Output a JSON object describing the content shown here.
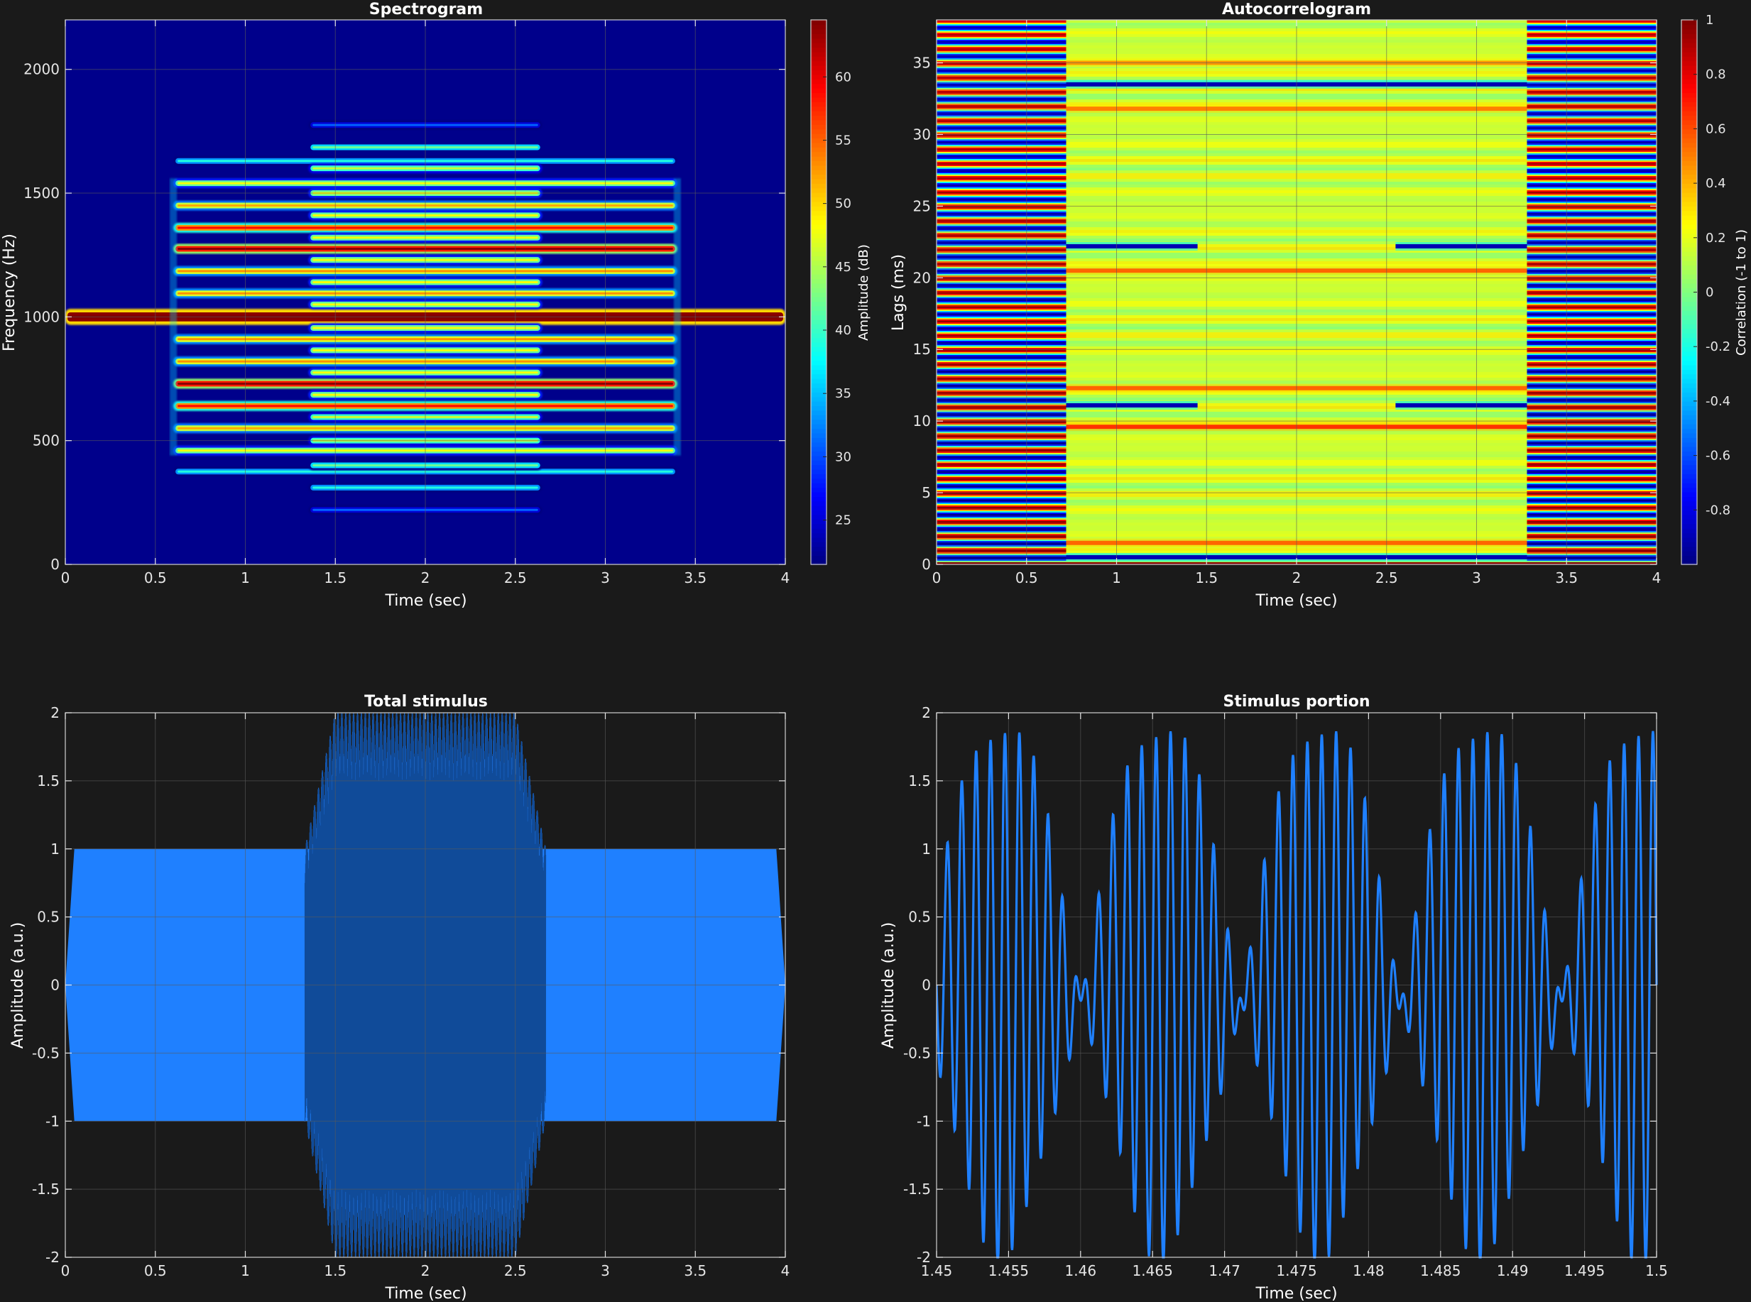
{
  "colors": {
    "background": "#1a1a1a",
    "axes_bg_dark": "#1a1a1a",
    "text": "#ffffff",
    "tick_text": "#e6e6e6",
    "grid": "#5a5a5a",
    "line": "#1f80ff",
    "colormap": "jet"
  },
  "chart_data": [
    {
      "id": "spectrogram",
      "type": "heatmap",
      "title": "Spectrogram",
      "xlabel": "Time (sec)",
      "ylabel": "Frequency (Hz)",
      "xlim": [
        0,
        4
      ],
      "ylim": [
        0,
        2200
      ],
      "xticks": [
        0,
        0.5,
        1,
        1.5,
        2,
        2.5,
        3,
        3.5,
        4
      ],
      "yticks": [
        0,
        500,
        1000,
        1500,
        2000
      ],
      "grid": true,
      "colorbar": {
        "label": "Amplitude (dB)",
        "ticks": [
          25,
          30,
          35,
          40,
          45,
          50,
          55,
          60
        ],
        "range": [
          21.5,
          64.5
        ]
      },
      "background_level": 22,
      "harmonics": [
        {
          "f": 1000,
          "t0": 0,
          "t1": 4,
          "level": 64,
          "thick": true
        },
        {
          "f": 1275,
          "t0": 0.6,
          "t1": 3.4,
          "level": 58
        },
        {
          "f": 1360,
          "t0": 0.6,
          "t1": 3.4,
          "level": 53
        },
        {
          "f": 1450,
          "t0": 0.6,
          "t1": 3.4,
          "level": 46
        },
        {
          "f": 1540,
          "t0": 0.6,
          "t1": 3.4,
          "level": 42
        },
        {
          "f": 1630,
          "t0": 0.6,
          "t1": 3.4,
          "level": 33
        },
        {
          "f": 1185,
          "t0": 0.6,
          "t1": 3.4,
          "level": 47
        },
        {
          "f": 1095,
          "t0": 0.6,
          "t1": 3.4,
          "level": 47
        },
        {
          "f": 910,
          "t0": 0.6,
          "t1": 3.4,
          "level": 47
        },
        {
          "f": 820,
          "t0": 0.6,
          "t1": 3.4,
          "level": 47
        },
        {
          "f": 730,
          "t0": 0.6,
          "t1": 3.4,
          "level": 58
        },
        {
          "f": 640,
          "t0": 0.6,
          "t1": 3.4,
          "level": 53
        },
        {
          "f": 550,
          "t0": 0.6,
          "t1": 3.4,
          "level": 46
        },
        {
          "f": 460,
          "t0": 0.6,
          "t1": 3.4,
          "level": 42
        },
        {
          "f": 375,
          "t0": 0.6,
          "t1": 3.4,
          "level": 33
        },
        {
          "f": 1775,
          "t0": 1.35,
          "t1": 2.65,
          "level": 25
        },
        {
          "f": 1685,
          "t0": 1.35,
          "t1": 2.65,
          "level": 36
        },
        {
          "f": 1600,
          "t0": 1.35,
          "t1": 2.65,
          "level": 40
        },
        {
          "f": 1500,
          "t0": 1.35,
          "t1": 2.65,
          "level": 42
        },
        {
          "f": 1410,
          "t0": 1.35,
          "t1": 2.65,
          "level": 42
        },
        {
          "f": 1320,
          "t0": 1.35,
          "t1": 2.65,
          "level": 42
        },
        {
          "f": 1230,
          "t0": 1.35,
          "t1": 2.65,
          "level": 42
        },
        {
          "f": 1140,
          "t0": 1.35,
          "t1": 2.65,
          "level": 42
        },
        {
          "f": 1050,
          "t0": 1.35,
          "t1": 2.65,
          "level": 42
        },
        {
          "f": 955,
          "t0": 1.35,
          "t1": 2.65,
          "level": 42
        },
        {
          "f": 865,
          "t0": 1.35,
          "t1": 2.65,
          "level": 42
        },
        {
          "f": 775,
          "t0": 1.35,
          "t1": 2.65,
          "level": 42
        },
        {
          "f": 685,
          "t0": 1.35,
          "t1": 2.65,
          "level": 42
        },
        {
          "f": 595,
          "t0": 1.35,
          "t1": 2.65,
          "level": 40
        },
        {
          "f": 500,
          "t0": 1.35,
          "t1": 2.65,
          "level": 40
        },
        {
          "f": 400,
          "t0": 1.35,
          "t1": 2.65,
          "level": 36
        },
        {
          "f": 310,
          "t0": 1.35,
          "t1": 2.65,
          "level": 33
        },
        {
          "f": 220,
          "t0": 1.35,
          "t1": 2.65,
          "level": 25
        }
      ]
    },
    {
      "id": "autocorrelogram",
      "type": "heatmap",
      "title": "Autocorrelogram",
      "xlabel": "Time (sec)",
      "ylabel": "Lags (ms)",
      "xlim": [
        0,
        4
      ],
      "ylim": [
        0,
        38
      ],
      "xticks": [
        0,
        0.5,
        1,
        1.5,
        2,
        2.5,
        3,
        3.5,
        4
      ],
      "yticks": [
        0,
        5,
        10,
        15,
        20,
        25,
        30,
        35
      ],
      "grid": true,
      "colorbar": {
        "label": "Correlation (-1 to 1)",
        "ticks": [
          -0.8,
          -0.6,
          -0.4,
          -0.2,
          0,
          0.2,
          0.4,
          0.6,
          0.8,
          1
        ],
        "range": [
          -1,
          1
        ]
      },
      "segments": [
        {
          "t0": 0,
          "t1": 0.72,
          "pattern": "cosine",
          "period_ms": 1.0
        },
        {
          "t0": 0.72,
          "t1": 3.28,
          "pattern": "mixed",
          "mean": 0.15
        },
        {
          "t0": 3.28,
          "t1": 4,
          "pattern": "cosine",
          "period_ms": 1.0
        }
      ],
      "strong_bands": [
        {
          "lag": 0.5,
          "t0": 0.72,
          "t1": 3.28,
          "value": -0.9
        },
        {
          "lag": 1.5,
          "t0": 0.72,
          "t1": 3.28,
          "value": 0.55
        },
        {
          "lag": 9.6,
          "t0": 0.72,
          "t1": 3.28,
          "value": 0.65
        },
        {
          "lag": 11.1,
          "t0": 0.72,
          "t1": 1.45,
          "value": -0.9
        },
        {
          "lag": 11.1,
          "t0": 2.55,
          "t1": 3.28,
          "value": -0.9
        },
        {
          "lag": 12.3,
          "t0": 0.72,
          "t1": 3.28,
          "value": 0.55
        },
        {
          "lag": 20.5,
          "t0": 0.72,
          "t1": 3.28,
          "value": 0.55
        },
        {
          "lag": 22.2,
          "t0": 0.72,
          "t1": 1.45,
          "value": -0.9
        },
        {
          "lag": 22.2,
          "t0": 2.55,
          "t1": 3.28,
          "value": -0.9
        },
        {
          "lag": 33.5,
          "t0": 0.72,
          "t1": 3.28,
          "value": -0.9
        },
        {
          "lag": 31.8,
          "t0": 0.72,
          "t1": 3.28,
          "value": 0.5
        },
        {
          "lag": 35.0,
          "t0": 0.72,
          "t1": 3.28,
          "value": 0.45
        }
      ]
    },
    {
      "id": "total-stimulus",
      "type": "area",
      "title": "Total stimulus",
      "xlabel": "Time (sec)",
      "ylabel": "Amplitude (a.u.)",
      "xlim": [
        0,
        4
      ],
      "ylim": [
        -2,
        2
      ],
      "xticks": [
        0,
        0.5,
        1,
        1.5,
        2,
        2.5,
        3,
        3.5,
        4
      ],
      "yticks": [
        -2,
        -1.5,
        -1,
        -0.5,
        0,
        0.5,
        1,
        1.5,
        2
      ],
      "grid": true,
      "envelope": {
        "base_amplitude": 1,
        "ramp_on": [
          0,
          0.05
        ],
        "ramp_off": [
          3.95,
          4
        ],
        "burst": {
          "t0": 1.33,
          "t1": 2.67,
          "peak_t0": 1.5,
          "peak_t1": 2.5,
          "peak_amplitude": 2
        }
      }
    },
    {
      "id": "stimulus-portion",
      "type": "line",
      "title": "Stimulus portion",
      "xlabel": "Time (sec)",
      "ylabel": "Amplitude (a.u.)",
      "xlim": [
        1.45,
        1.5
      ],
      "ylim": [
        -2,
        2
      ],
      "xticks": [
        1.45,
        1.455,
        1.46,
        1.465,
        1.47,
        1.475,
        1.48,
        1.485,
        1.49,
        1.495,
        1.5
      ],
      "yticks": [
        -2,
        -1.5,
        -1,
        -0.5,
        0,
        0.5,
        1,
        1.5,
        2
      ],
      "grid": true,
      "signal": {
        "carrier_hz": 1000,
        "beat_hz": 90,
        "phase": 0.3
      }
    }
  ]
}
